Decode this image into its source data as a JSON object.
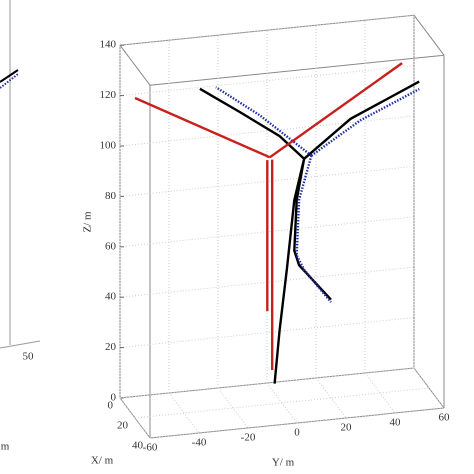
{
  "chart_data": {
    "type": "line3d",
    "xlabel": "X/ m",
    "ylabel": "Y/ m",
    "zlabel": "Z/ m",
    "xlim": [
      0,
      40
    ],
    "ylim": [
      -60,
      60
    ],
    "zlim": [
      0,
      140
    ],
    "xticks": [
      0,
      20,
      40
    ],
    "yticks": [
      -60,
      -40,
      -20,
      0,
      20,
      40,
      60
    ],
    "zticks": [
      0,
      20,
      40,
      60,
      80,
      100,
      120,
      140
    ],
    "grid": true,
    "series": [
      {
        "color": "#000000",
        "dash": "solid",
        "x": [
          20,
          20,
          20,
          20,
          20,
          null,
          20,
          20,
          20,
          20,
          null,
          20,
          20,
          20,
          null,
          20,
          20,
          20,
          20,
          20
        ],
        "y": [
          -3,
          -1,
          2,
          5,
          9,
          null,
          9,
          -1,
          -17,
          -33.5,
          null,
          9,
          28,
          56,
          null,
          9,
          6,
          5,
          7,
          20
        ],
        "z": [
          8,
          29,
          53,
          80,
          96,
          null,
          96,
          106,
          117,
          128,
          null,
          96,
          110,
          122,
          null,
          96,
          80,
          60,
          54,
          39
        ]
      },
      {
        "color": "#1f2fa0",
        "dash": "dotted",
        "x": [
          20,
          20,
          20,
          null,
          20,
          20,
          20,
          null,
          20,
          20,
          20,
          20,
          20
        ],
        "y": [
          12,
          -9,
          -27,
          null,
          12,
          32,
          56,
          null,
          12,
          7,
          6,
          9,
          20
        ],
        "z": [
          97,
          115,
          128,
          null,
          97,
          109,
          119,
          null,
          97,
          80,
          58,
          52,
          38
        ]
      },
      {
        "color": "#c8201c",
        "dash": "solid",
        "x": [
          20,
          20,
          null,
          20,
          20,
          null,
          20,
          20,
          null,
          20,
          20
        ],
        "y": [
          -4,
          -4,
          null,
          -5,
          -60,
          null,
          -5,
          49,
          null,
          -6,
          -6
        ],
        "z": [
          13.5,
          97,
          null,
          98,
          127,
          null,
          98,
          130,
          null,
          97,
          37
        ]
      }
    ]
  },
  "left_fragment": {
    "tick": "50",
    "label": "m"
  }
}
